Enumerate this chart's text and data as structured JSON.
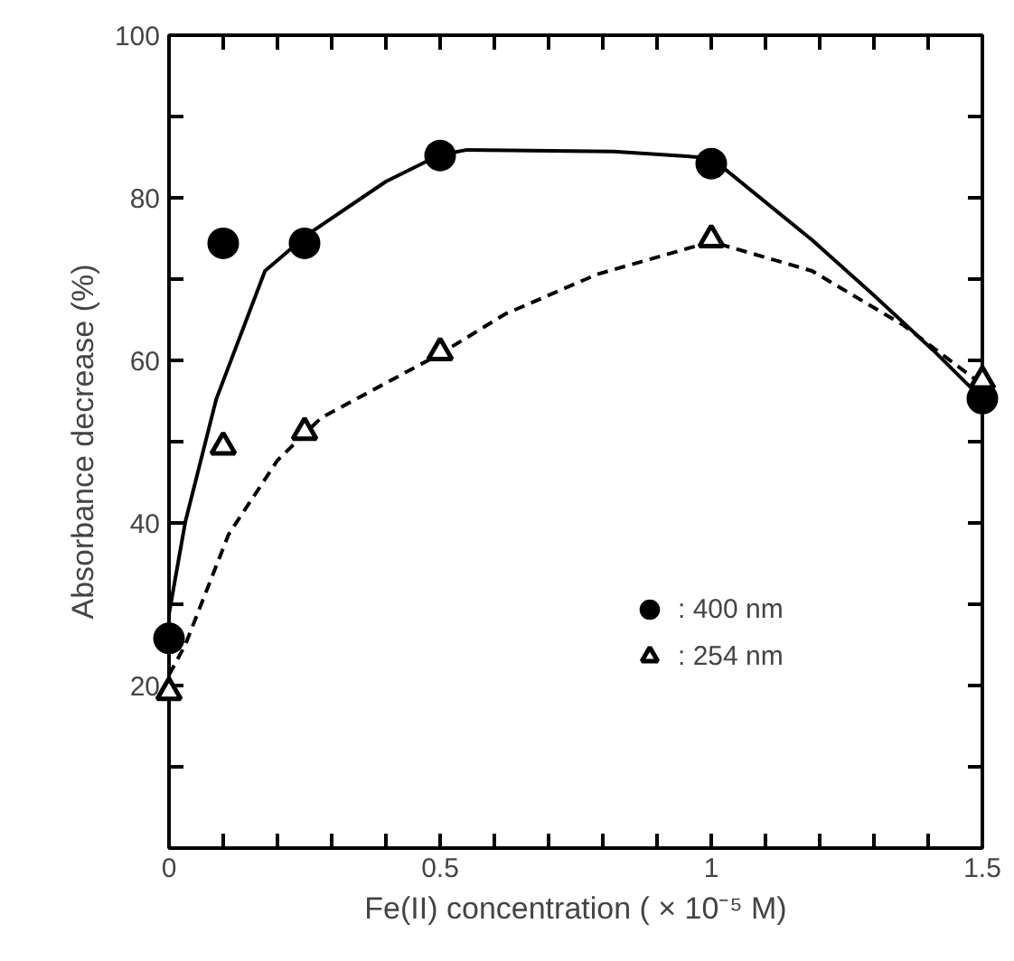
{
  "chart_data": {
    "type": "scatter",
    "xlabel": "Fe(II) concentration ( × 10⁻⁵ M)",
    "ylabel": "Absorbance decrease (%)",
    "xlim": [
      0,
      1.5
    ],
    "ylim": [
      0,
      100
    ],
    "xticks": [
      0,
      {
        "value": 0.1,
        "label": null
      },
      {
        "value": 0.2,
        "label": null
      },
      {
        "value": 0.3,
        "label": null
      },
      {
        "value": 0.4,
        "label": null
      },
      0.5,
      {
        "value": 0.6,
        "label": null
      },
      {
        "value": 0.7,
        "label": null
      },
      {
        "value": 0.8,
        "label": null
      },
      {
        "value": 0.9,
        "label": null
      },
      1,
      {
        "value": 1.1,
        "label": null
      },
      {
        "value": 1.2,
        "label": null
      },
      {
        "value": 1.3,
        "label": null
      },
      {
        "value": 1.4,
        "label": null
      },
      1.5
    ],
    "yticks": [
      {
        "value": 10,
        "label": null
      },
      20,
      {
        "value": 30,
        "label": null
      },
      40,
      {
        "value": 50,
        "label": null
      },
      60,
      {
        "value": 70,
        "label": null
      },
      80,
      {
        "value": 90,
        "label": null
      },
      100
    ],
    "grid": false,
    "legend": "bottom right",
    "series": [
      {
        "type": "line",
        "color": "#000000",
        "line_style": "solid",
        "marker": "none",
        "x": [
          0,
          0.03,
          0.087,
          0.177,
          0.256,
          0.4,
          0.5,
          0.55,
          0.82,
          1.0,
          1.186,
          1.3,
          1.41,
          1.49
        ],
        "values": [
          28.8,
          40.1,
          55.2,
          71,
          75.5,
          82,
          85.3,
          85.9,
          85.7,
          84.9,
          74.8,
          68,
          61.2,
          55.9
        ]
      },
      {
        "type": "line",
        "color": "#000000",
        "line_style": "dashed",
        "marker": "none",
        "x": [
          0,
          0.03,
          0.11,
          0.2,
          0.28,
          0.5,
          0.62,
          0.79,
          1.0,
          1.186,
          1.355,
          1.49
        ],
        "values": [
          21.3,
          25,
          38.6,
          47.7,
          52.9,
          60.8,
          65.7,
          70.6,
          74.6,
          71,
          64.3,
          57.5
        ]
      },
      {
        "name": ": 400 nm",
        "color": "#000000",
        "marker": "circle",
        "x": [
          0,
          0.1,
          0.25,
          0.5,
          1,
          1.5
        ],
        "values": [
          25.8,
          74.4,
          74.4,
          85.2,
          84.2,
          55.3
        ]
      },
      {
        "name": ": 254 nm",
        "color": "#000000",
        "marker": "triangle",
        "x": [
          0,
          0.1,
          0.25,
          0.5,
          1,
          1.5
        ],
        "values": [
          19.2,
          49.4,
          51.2,
          61.0,
          74.9,
          57.5
        ]
      }
    ]
  }
}
